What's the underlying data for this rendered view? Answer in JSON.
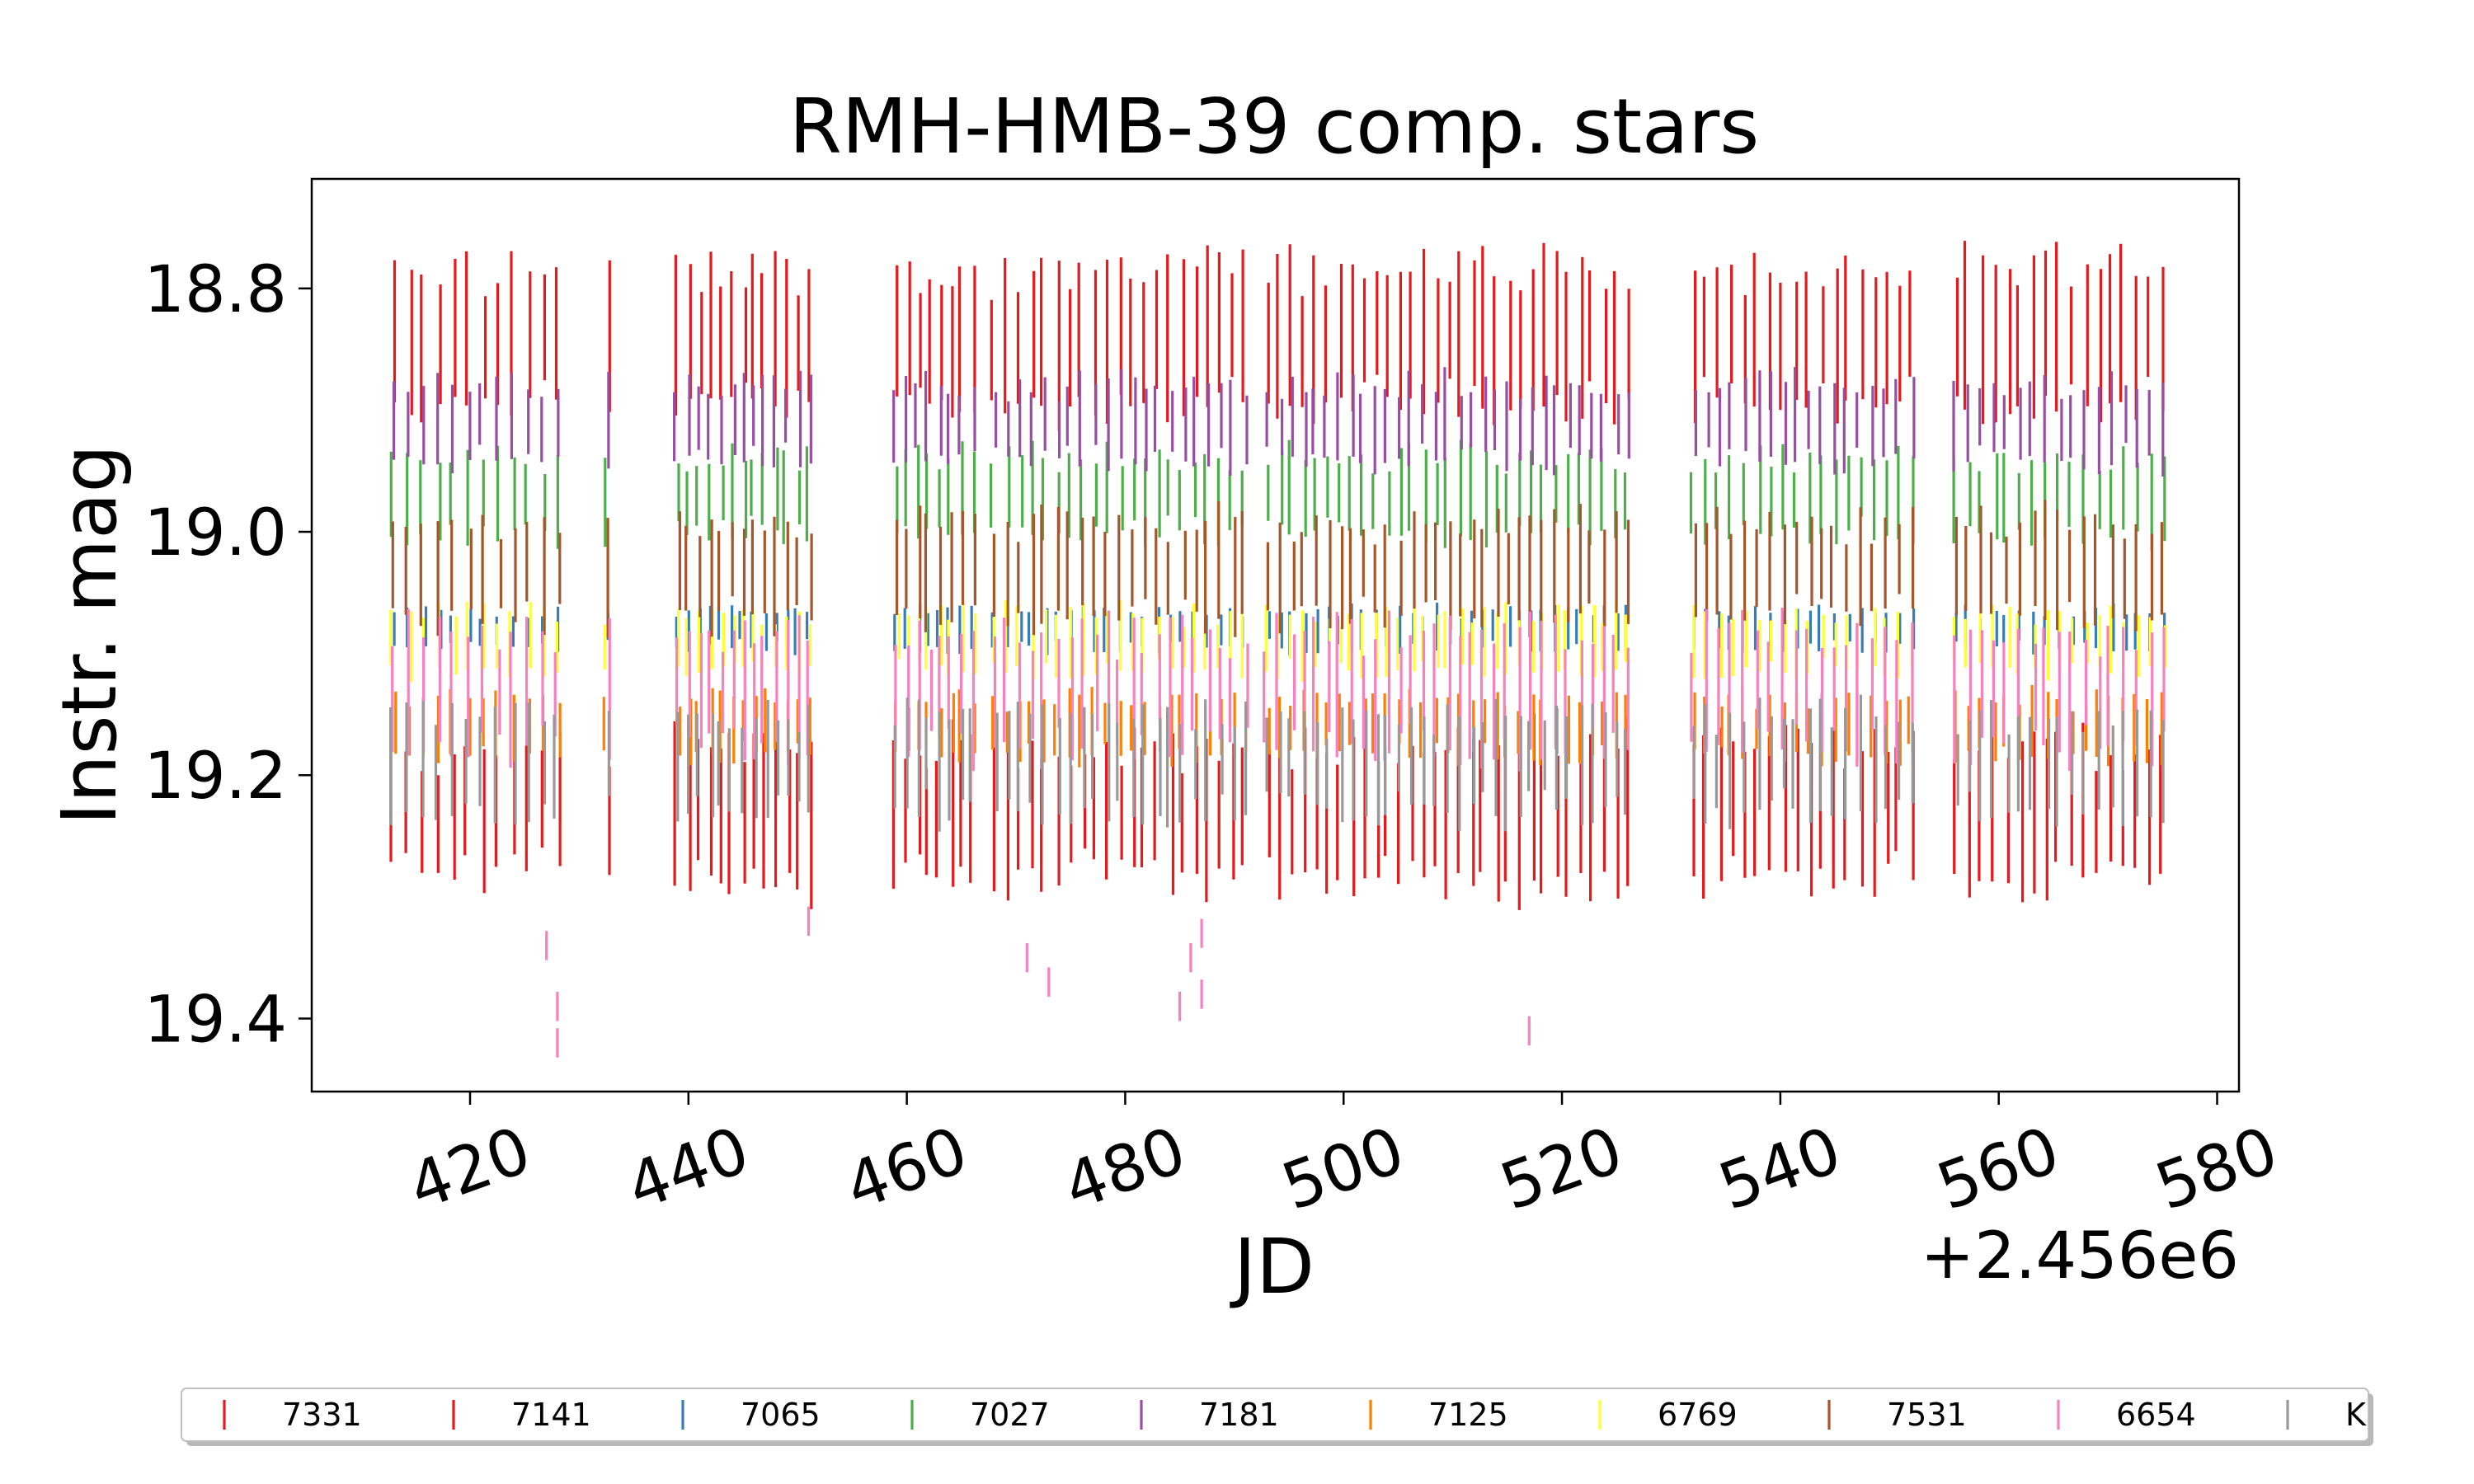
{
  "chart_data": {
    "type": "scatter",
    "title": "RMH-HMB-39 comp. stars",
    "xlabel": "JD",
    "ylabel": "Instr. mag",
    "x_offset_label": "+2.456e6",
    "xlim": [
      2456405.5,
      2456582
    ],
    "ylim": [
      19.46,
      18.71
    ],
    "y_inverted": true,
    "xticks": [
      420,
      440,
      460,
      480,
      500,
      520,
      540,
      560,
      580
    ],
    "xtick_labels": [
      "420",
      "440",
      "460",
      "480",
      "500",
      "520",
      "540",
      "560",
      "580"
    ],
    "yticks": [
      18.8,
      19.0,
      19.2,
      19.4
    ],
    "ytick_labels": [
      "18.8",
      "19.0",
      "19.2",
      "19.4"
    ],
    "grid": false,
    "legend_placement": "bottom",
    "observation_segments": [
      {
        "start": 2456413,
        "end": 2456428,
        "nights": 12
      },
      {
        "start": 2456432.5,
        "end": 2456433,
        "nights": 1
      },
      {
        "start": 2456439,
        "end": 2456451,
        "nights": 13
      },
      {
        "start": 2456459,
        "end": 2456466,
        "nights": 8
      },
      {
        "start": 2456468,
        "end": 2456491,
        "nights": 21
      },
      {
        "start": 2456493,
        "end": 2456526,
        "nights": 31
      },
      {
        "start": 2456532,
        "end": 2456552,
        "nights": 18
      },
      {
        "start": 2456556,
        "end": 2456575,
        "nights": 17
      }
    ],
    "series": [
      {
        "name": "7331",
        "color": "#e41a1c",
        "mag": 18.84,
        "scatter": 0.07
      },
      {
        "name": "7141",
        "color": "#e41a1c",
        "mag": 19.23,
        "scatter": 0.07
      },
      {
        "name": "7065",
        "color": "#377eb8",
        "mag": 19.08,
        "scatter": 0.02
      },
      {
        "name": "7027",
        "color": "#4daf4a",
        "mag": 18.97,
        "scatter": 0.04
      },
      {
        "name": "7181",
        "color": "#984ea3",
        "mag": 18.91,
        "scatter": 0.04
      },
      {
        "name": "7125",
        "color": "#ff7f00",
        "mag": 19.16,
        "scatter": 0.03
      },
      {
        "name": "6769",
        "color": "#ffff33",
        "mag": 19.09,
        "scatter": 0.03
      },
      {
        "name": "7531",
        "color": "#a65628",
        "mag": 19.03,
        "scatter": 0.05
      },
      {
        "name": "6654",
        "color": "#f781bf",
        "mag": 19.13,
        "scatter": 0.06
      },
      {
        "name": "K",
        "color": "#999999",
        "mag": 19.19,
        "scatter": 0.05
      }
    ],
    "outliers_6654": [
      {
        "x": 2456427,
        "y": 19.34
      },
      {
        "x": 2456428,
        "y": 19.39
      },
      {
        "x": 2456428,
        "y": 19.42
      },
      {
        "x": 2456451,
        "y": 19.32
      },
      {
        "x": 2456471,
        "y": 19.35
      },
      {
        "x": 2456473,
        "y": 19.37
      },
      {
        "x": 2456485,
        "y": 19.39
      },
      {
        "x": 2456486,
        "y": 19.35
      },
      {
        "x": 2456487,
        "y": 19.33
      },
      {
        "x": 2456487,
        "y": 19.38
      },
      {
        "x": 2456517,
        "y": 19.41
      }
    ]
  }
}
